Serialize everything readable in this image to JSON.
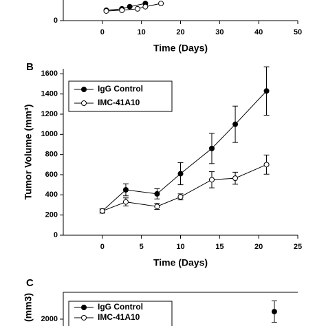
{
  "chart_data": [
    {
      "type": "line",
      "x_label": "Time (Days)",
      "xlim": [
        -10,
        50
      ],
      "xticks": [
        0,
        10,
        20,
        30,
        40,
        50
      ],
      "ylim": [
        0,
        500
      ],
      "yticks": [
        0
      ],
      "series": [
        {
          "color": "#000000",
          "marker_fill": "#000000",
          "x": [
            1,
            5,
            7,
            11
          ],
          "values": [
            58,
            66,
            78,
            96
          ]
        },
        {
          "color": "#000000",
          "marker_fill": "#ffffff",
          "x": [
            1,
            5,
            9,
            11,
            15
          ],
          "values": [
            54,
            58,
            66,
            78,
            96
          ]
        }
      ]
    },
    {
      "type": "line",
      "panel": "B",
      "x_label": "Time (Days)",
      "y_label": "Tumor Volume (mm³)",
      "xlim": [
        -5,
        25
      ],
      "xticks": [
        0,
        5,
        10,
        15,
        20,
        25
      ],
      "ylim": [
        0,
        1650
      ],
      "yticks": [
        0,
        200,
        400,
        600,
        800,
        1000,
        1200,
        1400,
        1600
      ],
      "series": [
        {
          "name": "IgG Control",
          "color": "#000000",
          "marker_fill": "#000000",
          "x": [
            0,
            3,
            7,
            10,
            14,
            17,
            21
          ],
          "values": [
            240,
            450,
            410,
            610,
            860,
            1100,
            1430
          ],
          "errors": [
            20,
            60,
            50,
            110,
            150,
            180,
            240
          ]
        },
        {
          "name": "IMC-41A10",
          "color": "#000000",
          "marker_fill": "#ffffff",
          "x": [
            0,
            3,
            7,
            10,
            14,
            17,
            21
          ],
          "values": [
            240,
            330,
            285,
            380,
            550,
            565,
            700
          ],
          "errors": [
            20,
            40,
            30,
            30,
            80,
            60,
            95
          ]
        }
      ]
    },
    {
      "type": "line",
      "panel": "C",
      "y_label": "(mm3)",
      "xlim": [
        -5,
        25
      ],
      "ylim": [
        0,
        3000
      ],
      "yticks": [
        2000
      ],
      "series": [
        {
          "name": "IgG Control",
          "color": "#000000",
          "marker_fill": "#000000",
          "x": [
            22
          ],
          "values": [
            2280
          ],
          "errors": [
            400
          ]
        },
        {
          "name": "IMC-41A10",
          "color": "#000000",
          "marker_fill": "#ffffff",
          "x": [],
          "values": []
        }
      ]
    }
  ]
}
